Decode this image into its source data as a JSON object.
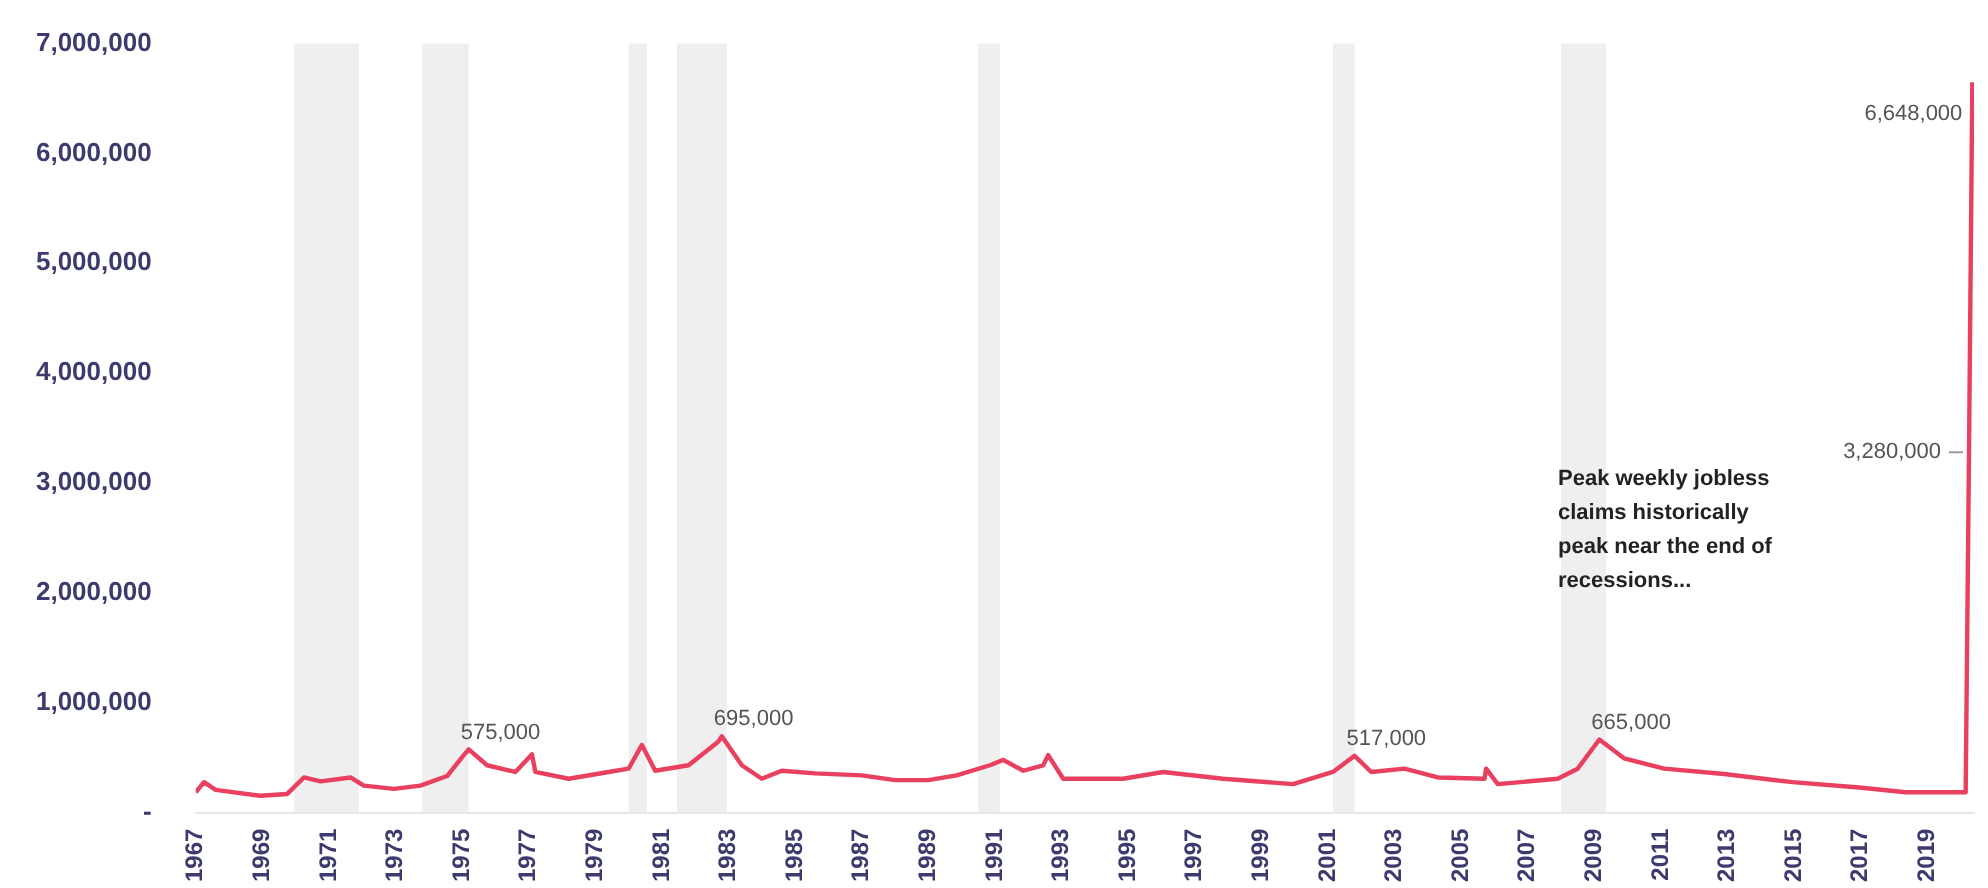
{
  "chart_data": {
    "type": "line",
    "x": [
      1967.0,
      1967.25,
      1967.6,
      1968.95,
      1969.75,
      1970.25,
      1970.75,
      1971.65,
      1972.05,
      1972.95,
      1973.75,
      1974.55,
      1975.05,
      1975.2,
      1975.75,
      1976.6,
      1977.1,
      1977.2,
      1978.2,
      1979.4,
      1980.0,
      1980.4,
      1980.8,
      1981.8,
      1982.7,
      1982.8,
      1983.4,
      1984.0,
      1984.6,
      1985.6,
      1987.0,
      1988.0,
      1989.0,
      1989.85,
      1990.85,
      1991.25,
      1991.85,
      1992.45,
      1992.6,
      1993.05,
      1994.85,
      1996.05,
      1997.85,
      1999.95,
      2001.15,
      2001.8,
      2002.3,
      2003.3,
      2004.3,
      2005.7,
      2005.75,
      2006.1,
      2007.9,
      2008.5,
      2009.15,
      2009.9,
      2011.1,
      2012.9,
      2014.95,
      2016.95,
      2018.35,
      2020.15,
      2020.25,
      2020.35
    ],
    "series": [
      {
        "color": "#e8405e",
        "values": [
          185000,
          277000,
          207000,
          153000,
          170000,
          320000,
          284000,
          320000,
          246000,
          216000,
          246000,
          333000,
          523000,
          575000,
          431000,
          370000,
          530000,
          370000,
          308000,
          370000,
          400000,
          616000,
          381000,
          431000,
          647000,
          695000,
          431000,
          308000,
          381000,
          357000,
          339000,
          296000,
          296000,
          339000,
          431000,
          480000,
          381000,
          431000,
          523000,
          308000,
          308000,
          370000,
          308000,
          259000,
          370000,
          517000,
          370000,
          400000,
          320000,
          308000,
          400000,
          259000,
          308000,
          400000,
          665000,
          493000,
          400000,
          351000,
          277000,
          228000,
          185000,
          185000,
          3280000,
          6648000
        ],
        "value_labels": [
          null,
          null,
          null,
          null,
          null,
          null,
          null,
          null,
          null,
          null,
          null,
          null,
          null,
          "575,000",
          null,
          null,
          null,
          null,
          null,
          null,
          null,
          null,
          null,
          null,
          null,
          "695,000",
          null,
          null,
          null,
          null,
          null,
          null,
          null,
          null,
          null,
          null,
          null,
          null,
          null,
          null,
          null,
          null,
          null,
          null,
          null,
          "517,000",
          null,
          null,
          null,
          null,
          null,
          null,
          null,
          null,
          "665,000",
          null,
          null,
          null,
          null,
          null,
          null,
          null,
          "3,280,000",
          "6,648,000"
        ]
      }
    ],
    "xlim": [
      1967,
      2020.4
    ],
    "xticks": [
      1967,
      1969,
      1971,
      1973,
      1975,
      1977,
      1979,
      1981,
      1983,
      1985,
      1987,
      1989,
      1991,
      1993,
      1995,
      1997,
      1999,
      2001,
      2003,
      2005,
      2007,
      2009,
      2011,
      2013,
      2015,
      2017,
      2019
    ],
    "ylim": [
      0,
      7000000
    ],
    "yticks": [
      {
        "value": 0,
        "label": "-"
      },
      {
        "value": 1000000,
        "label": "1,000,000"
      },
      {
        "value": 2000000,
        "label": "2,000,000"
      },
      {
        "value": 3000000,
        "label": "3,000,000"
      },
      {
        "value": 4000000,
        "label": "4,000,000"
      },
      {
        "value": 5000000,
        "label": "5,000,000"
      },
      {
        "value": 6000000,
        "label": "6,000,000"
      },
      {
        "value": 7000000,
        "label": "7,000,000"
      }
    ],
    "bands": [
      {
        "axis": "x",
        "from": 1969.95,
        "to": 1971.9,
        "color": "#efefef"
      },
      {
        "axis": "x",
        "from": 1973.8,
        "to": 1975.2,
        "color": "#efefef"
      },
      {
        "axis": "x",
        "from": 1980.0,
        "to": 1980.55,
        "color": "#efefef"
      },
      {
        "axis": "x",
        "from": 1981.45,
        "to": 1982.95,
        "color": "#efefef"
      },
      {
        "axis": "x",
        "from": 1990.5,
        "to": 1991.15,
        "color": "#efefef"
      },
      {
        "axis": "x",
        "from": 2001.15,
        "to": 2001.8,
        "color": "#efefef"
      },
      {
        "axis": "x",
        "from": 2008.0,
        "to": 2009.35,
        "color": "#efefef"
      }
    ],
    "annotations": [
      "Peak weekly jobless claims historically peak near the end of recessions..."
    ],
    "grid": false,
    "legend": false,
    "marker": "none",
    "line_style": "solid"
  }
}
